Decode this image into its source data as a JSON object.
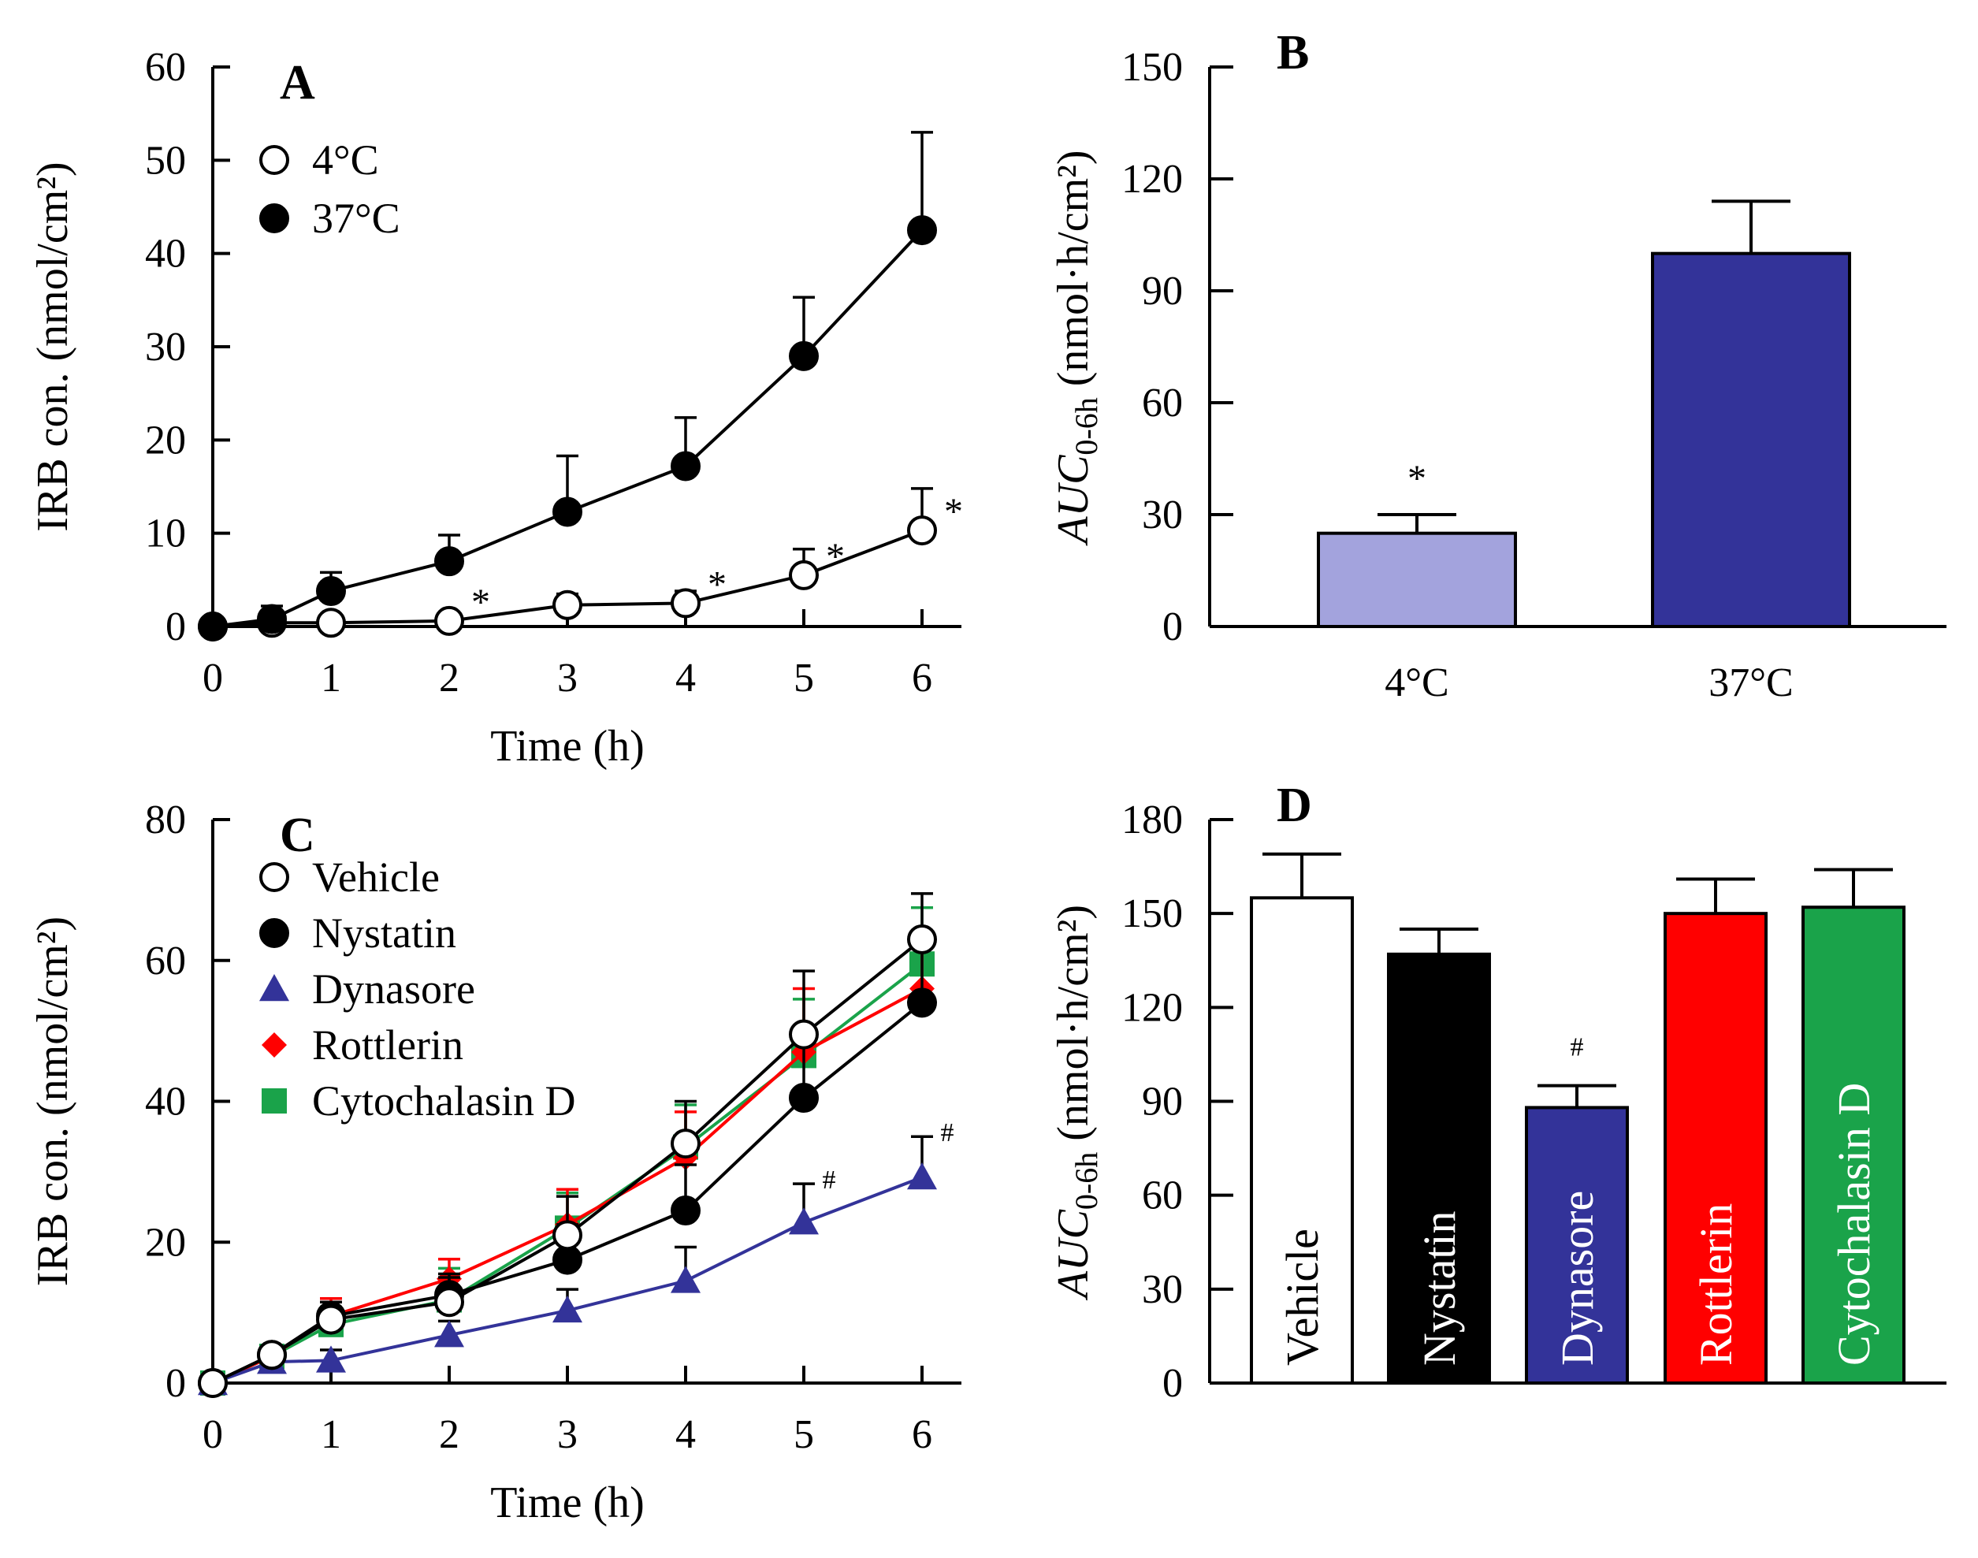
{
  "chart_data": [
    {
      "id": "A",
      "panel_label": "A",
      "type": "line",
      "xlabel": "Time (h)",
      "ylabel": "IRB con. (nmol/cm²)",
      "xlim": [
        0,
        6
      ],
      "ylim": [
        0,
        60
      ],
      "xticks": [
        0,
        1,
        2,
        3,
        4,
        5,
        6
      ],
      "yticks": [
        0,
        10,
        20,
        30,
        40,
        50,
        60
      ],
      "legend_position": "top-left",
      "series": [
        {
          "name": "4°C",
          "marker": "circle-open",
          "color": "#000000",
          "x": [
            0,
            0.5,
            1,
            2,
            3,
            4,
            5,
            6
          ],
          "y": [
            0,
            0.4,
            0.4,
            0.6,
            2.3,
            2.5,
            5.5,
            10.3
          ],
          "err": [
            0,
            0.6,
            0.4,
            0.7,
            1.2,
            1.3,
            2.8,
            4.5
          ],
          "annotations": [
            "",
            "",
            "",
            "*",
            "",
            "*",
            "*",
            "*"
          ]
        },
        {
          "name": "37°C",
          "marker": "circle-filled",
          "color": "#000000",
          "x": [
            0,
            0.5,
            1,
            2,
            3,
            4,
            5,
            6
          ],
          "y": [
            0,
            0.8,
            3.8,
            7.0,
            12.3,
            17.2,
            29.0,
            42.5
          ],
          "err": [
            0,
            1.4,
            2.0,
            2.8,
            6.0,
            5.2,
            6.3,
            10.5
          ],
          "annotations": [
            "",
            "",
            "",
            "",
            "",
            "",
            "",
            ""
          ]
        }
      ]
    },
    {
      "id": "B",
      "panel_label": "B",
      "type": "bar",
      "xlabel": "",
      "ylabel_main": "AUC",
      "ylabel_sub": "0-6h",
      "ylabel_rest": " (nmol·h/cm²)",
      "ylim": [
        0,
        150
      ],
      "yticks": [
        0,
        30,
        60,
        90,
        120,
        150
      ],
      "categories": [
        "4°C",
        "37°C"
      ],
      "values": [
        25,
        100
      ],
      "err": [
        5,
        14
      ],
      "colors": [
        "#a3a3dd",
        "#333399"
      ],
      "annotations": [
        "*",
        ""
      ]
    },
    {
      "id": "C",
      "panel_label": "C",
      "type": "line",
      "xlabel": "Time (h)",
      "ylabel": "IRB con. (nmol/cm²)",
      "xlim": [
        0,
        6
      ],
      "ylim": [
        0,
        80
      ],
      "xticks": [
        0,
        1,
        2,
        3,
        4,
        5,
        6
      ],
      "yticks": [
        0,
        20,
        40,
        60,
        80
      ],
      "legend_position": "top-left",
      "series": [
        {
          "name": "Cytochalasin D",
          "marker": "square",
          "color": "#1aa34a",
          "x": [
            0,
            0.5,
            1,
            2,
            3,
            4,
            5,
            6
          ],
          "y": [
            0,
            3.8,
            8.3,
            11.8,
            22.0,
            33.5,
            46.5,
            59.5
          ],
          "err": [
            0,
            1.0,
            2.5,
            4.5,
            5.0,
            6.0,
            8.0,
            8.0
          ],
          "annotations": [
            "",
            "",
            "",
            "",
            "",
            "",
            "",
            ""
          ]
        },
        {
          "name": "Rottlerin",
          "marker": "diamond",
          "color": "#ff0000",
          "x": [
            0,
            0.5,
            1,
            2,
            3,
            4,
            5,
            6
          ],
          "y": [
            0,
            3.8,
            9.5,
            14.8,
            22.5,
            32.0,
            47.0,
            56.0
          ],
          "err": [
            0,
            1.0,
            2.5,
            2.8,
            5.0,
            6.5,
            9.0,
            8.0
          ],
          "annotations": [
            "",
            "",
            "",
            "",
            "",
            "",
            "",
            ""
          ]
        },
        {
          "name": "Dynasore",
          "marker": "triangle",
          "color": "#333399",
          "x": [
            0,
            0.5,
            1,
            2,
            3,
            4,
            5,
            6
          ],
          "y": [
            0,
            3.0,
            3.2,
            6.8,
            10.3,
            14.5,
            22.8,
            29.2
          ],
          "err": [
            0,
            1.0,
            1.5,
            2.0,
            3.0,
            4.8,
            5.5,
            5.8
          ],
          "annotations": [
            "",
            "",
            "",
            "",
            "",
            "",
            "#",
            "#"
          ]
        },
        {
          "name": "Nystatin",
          "marker": "circle-filled",
          "color": "#000000",
          "x": [
            0,
            0.5,
            1,
            2,
            3,
            4,
            5,
            6
          ],
          "y": [
            0,
            4.0,
            9.5,
            12.5,
            17.5,
            24.5,
            40.5,
            54.0
          ],
          "err": [
            0,
            1.0,
            2.0,
            3.0,
            5.0,
            6.5,
            8.0,
            8.0
          ],
          "annotations": [
            "",
            "",
            "",
            "",
            "",
            "",
            "",
            ""
          ]
        },
        {
          "name": "Vehicle",
          "marker": "circle-open",
          "color": "#000000",
          "x": [
            0,
            0.5,
            1,
            2,
            3,
            4,
            5,
            6
          ],
          "y": [
            0,
            4.0,
            9.0,
            11.5,
            21.0,
            34.0,
            49.5,
            63.0
          ],
          "err": [
            0,
            1.0,
            2.5,
            3.5,
            5.5,
            6.0,
            9.0,
            6.5
          ],
          "annotations": [
            "",
            "",
            "",
            "",
            "",
            "",
            "",
            ""
          ]
        }
      ],
      "legend_order": [
        "Vehicle",
        "Nystatin",
        "Dynasore",
        "Rottlerin",
        "Cytochalasin D"
      ]
    },
    {
      "id": "D",
      "panel_label": "D",
      "type": "bar",
      "xlabel": "",
      "ylabel_main": "AUC",
      "ylabel_sub": "0-6h",
      "ylabel_rest": " (nmol·h/cm²)",
      "ylim": [
        0,
        180
      ],
      "yticks": [
        0,
        30,
        60,
        90,
        120,
        150,
        180
      ],
      "categories": [
        "Vehicle",
        "Nystatin",
        "Dynasore",
        "Rottlerin",
        "Cytochalasin D"
      ],
      "values": [
        155,
        137,
        88,
        150,
        152
      ],
      "err": [
        14,
        8,
        7,
        11,
        12
      ],
      "colors": [
        "#ffffff",
        "#000000",
        "#333399",
        "#ff0000",
        "#1aa34a"
      ],
      "label_colors": [
        "#000000",
        "#ffffff",
        "#ffffff",
        "#ffffff",
        "#ffffff"
      ],
      "annotations": [
        "",
        "",
        "#",
        "",
        ""
      ]
    }
  ]
}
